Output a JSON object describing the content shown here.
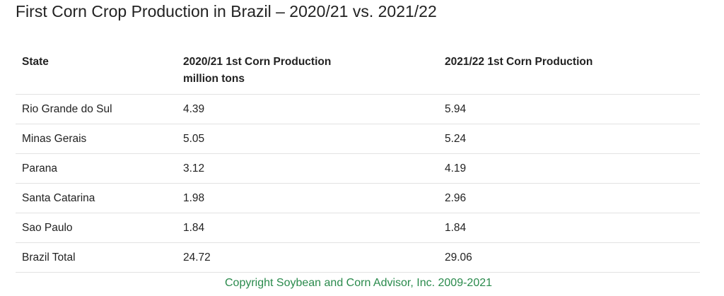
{
  "title": "First Corn Crop Production in Brazil – 2020/21 vs. 2021/22",
  "table": {
    "columns": [
      {
        "label": "State"
      },
      {
        "label": "2020/21 1st Corn Production",
        "unit": "million tons"
      },
      {
        "label": "2021/22 1st Corn Production"
      }
    ],
    "rows": [
      [
        "Rio Grande do Sul",
        "4.39",
        "5.94"
      ],
      [
        "Minas Gerais",
        "5.05",
        "5.24"
      ],
      [
        "Parana",
        "3.12",
        "4.19"
      ],
      [
        "Santa Catarina",
        "1.98",
        "2.96"
      ],
      [
        "Sao Paulo",
        "1.84",
        "1.84"
      ],
      [
        "Brazil Total",
        "24.72",
        "29.06"
      ]
    ]
  },
  "footer": "Copyright Soybean and Corn Advisor, Inc. 2009-2021"
}
